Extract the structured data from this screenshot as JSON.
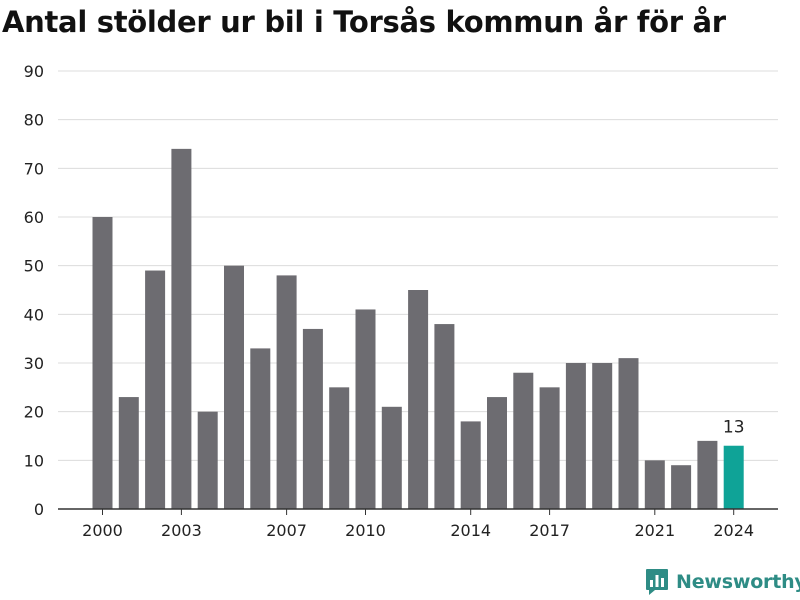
{
  "chart_data": {
    "type": "bar",
    "title": "Antal stölder ur bil i Torsås kommun år för år",
    "x": [
      2000,
      2001,
      2002,
      2003,
      2004,
      2005,
      2006,
      2007,
      2008,
      2009,
      2010,
      2011,
      2012,
      2013,
      2014,
      2015,
      2016,
      2017,
      2018,
      2019,
      2020,
      2021,
      2022,
      2023,
      2024
    ],
    "values": [
      60,
      23,
      49,
      74,
      20,
      50,
      33,
      48,
      37,
      25,
      41,
      21,
      45,
      38,
      18,
      23,
      28,
      25,
      30,
      30,
      31,
      10,
      9,
      14,
      13
    ],
    "x_tick_labels": [
      "2000",
      "2003",
      "2007",
      "2010",
      "2014",
      "2017",
      "2021",
      "2024"
    ],
    "y_ticks": [
      0,
      10,
      20,
      30,
      40,
      50,
      60,
      70,
      80,
      90
    ],
    "ylim": [
      0,
      90
    ],
    "xlabel": "",
    "ylabel": "",
    "grid": true,
    "highlight": {
      "index": 24,
      "label": "13"
    },
    "colors": {
      "bar": "#6d6c71",
      "highlight": "#0fa397",
      "grid": "#dcdcdc",
      "axis": "#333333",
      "text": "#222222"
    }
  },
  "brand": {
    "name": "Newsworthy",
    "icon": "newsworthy-logo-icon",
    "color": "#2e8c85"
  }
}
